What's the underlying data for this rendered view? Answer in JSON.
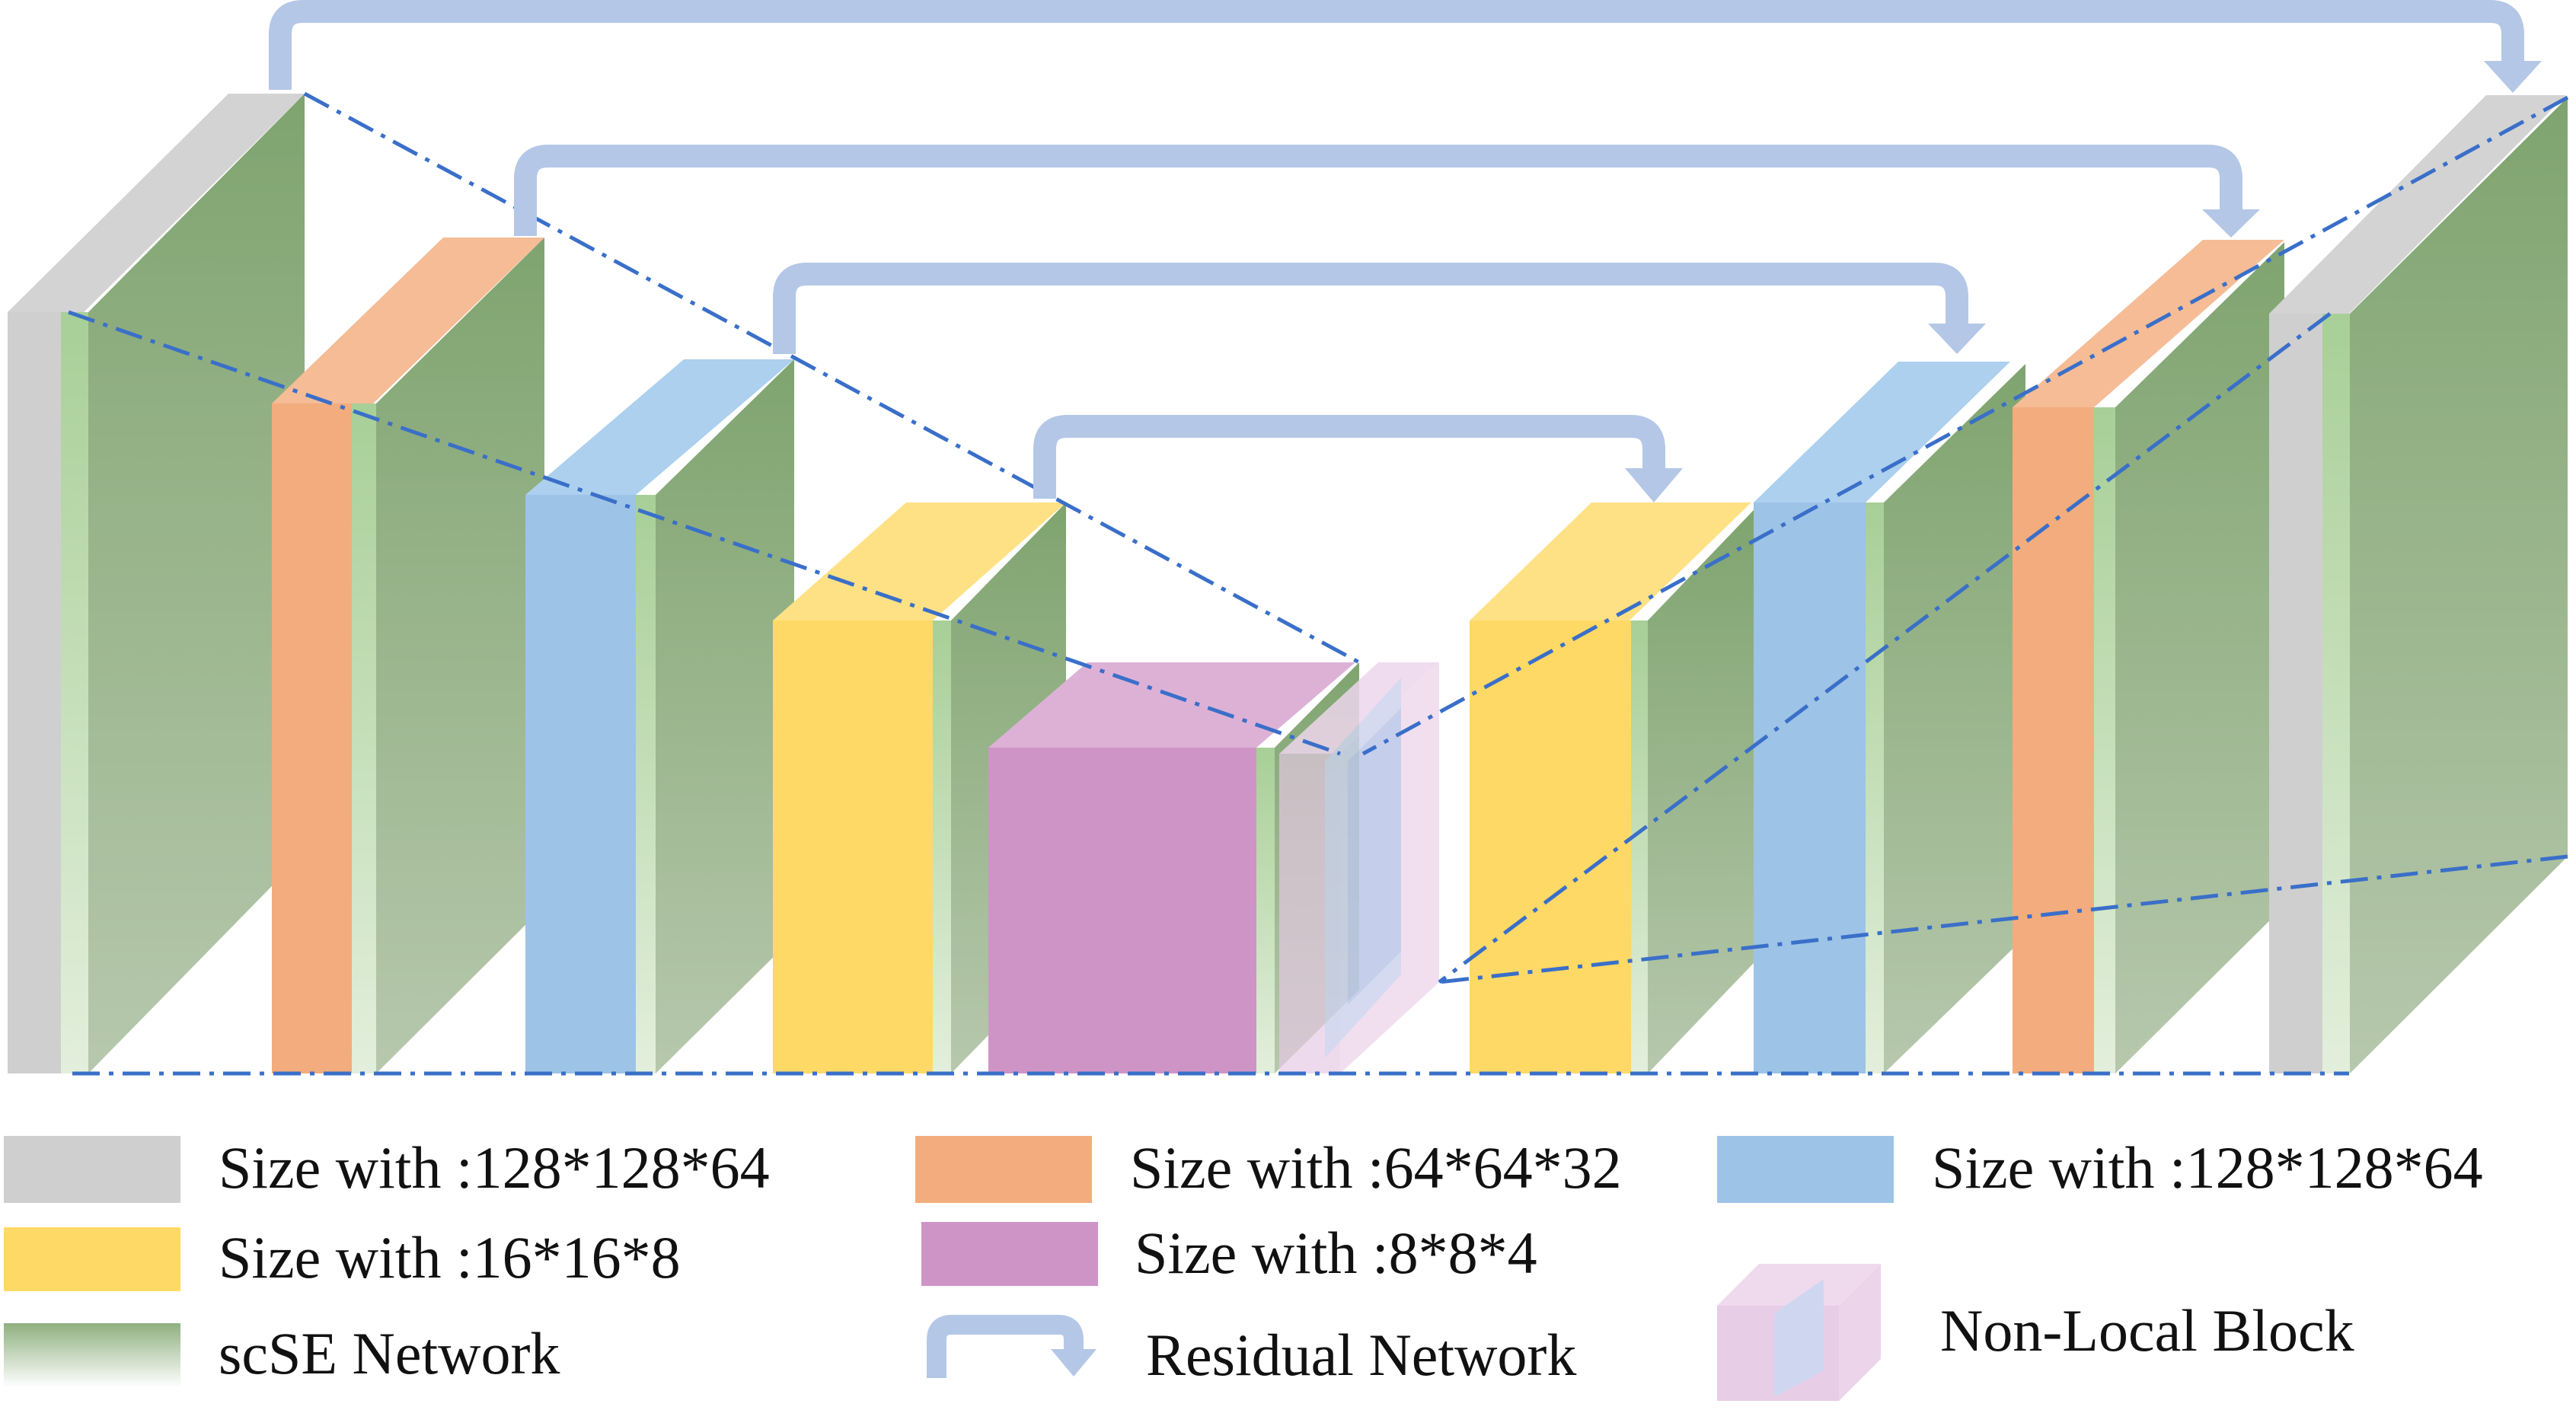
{
  "legend": {
    "gray": "Size with :128*128*64",
    "orange": "Size with :64*64*32",
    "blue": "Size with :128*128*64",
    "yellow": "Size with :16*16*8",
    "purple": "Size with :8*8*4",
    "scse": "scSE Network",
    "residual": "Residual Network",
    "nonlocal": "Non-Local Block"
  },
  "colors": {
    "gray": "#d3d3d3",
    "orange": "#f3b084",
    "blue": "#9dc3e6",
    "yellow": "#ffd966",
    "purple": "#cf94c6",
    "green": "#8fae82",
    "arrow": "#b4c7e7",
    "dash": "#3a6fc9",
    "nonlocal": "#e6c8e4"
  }
}
